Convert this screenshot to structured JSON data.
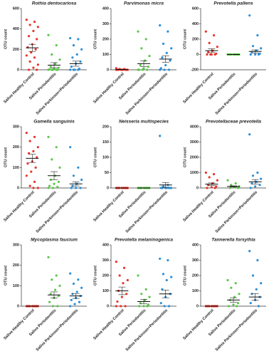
{
  "chart_data": [
    {
      "type": "dot",
      "title": "Rothia dentocariosa",
      "y_label": "OTU count",
      "categories": [
        "Saliva Healthy Control",
        "Saliva Periodontitis",
        "Saliva Parkinson+Periodontitis"
      ],
      "ylim": [
        0,
        600
      ],
      "yticks": [
        0,
        200,
        400,
        600
      ],
      "groups": [
        {
          "color": "#e8342b",
          "values": [
            490,
            470,
            440,
            420,
            380,
            330,
            300,
            250,
            220,
            200,
            170,
            140,
            120,
            80,
            50,
            20,
            0,
            0
          ],
          "mean": 215,
          "sem": 35
        },
        {
          "color": "#5cc64b",
          "values": [
            340,
            240,
            150,
            100,
            60,
            30,
            20,
            10,
            5,
            0,
            0,
            0,
            0,
            0
          ],
          "mean": 45,
          "sem": 25
        },
        {
          "color": "#2d8fd8",
          "values": [
            310,
            300,
            240,
            200,
            150,
            120,
            80,
            60,
            30,
            10,
            0,
            0,
            0,
            0
          ],
          "mean": 60,
          "sem": 25
        }
      ]
    },
    {
      "type": "dot",
      "title": "Parvimonas micra",
      "y_label": "OTU count",
      "categories": [
        "Saliva Healthy Control",
        "Saliva Periodontitis",
        "Saliva Parkinson+Periodontitis"
      ],
      "ylim": [
        0,
        400
      ],
      "yticks": [
        0,
        100,
        200,
        300,
        400
      ],
      "groups": [
        {
          "color": "#e8342b",
          "values": [
            10,
            5,
            5,
            0,
            0,
            0,
            0,
            0,
            0,
            0,
            0,
            0
          ],
          "mean": 2,
          "sem": 1
        },
        {
          "color": "#5cc64b",
          "values": [
            250,
            200,
            140,
            90,
            60,
            30,
            20,
            10,
            0,
            0,
            0,
            0
          ],
          "mean": 40,
          "sem": 18
        },
        {
          "color": "#2d8fd8",
          "values": [
            290,
            250,
            170,
            140,
            110,
            80,
            60,
            30,
            10,
            0,
            0,
            0
          ],
          "mean": 70,
          "sem": 22
        }
      ]
    },
    {
      "type": "dot",
      "title": "Prevotella pallens",
      "y_label": "OTU count",
      "categories": [
        "Saliva Healthy Control",
        "Saliva Periodontitis",
        "Saliva Parkinson+Periodontitis"
      ],
      "ylim": [
        -200,
        600
      ],
      "yticks": [
        -200,
        0,
        200,
        400,
        600
      ],
      "groups": [
        {
          "color": "#e8342b",
          "values": [
            300,
            250,
            150,
            100,
            50,
            30,
            10,
            0,
            0,
            0,
            0
          ],
          "mean": 50,
          "sem": 25
        },
        {
          "color": "#5cc64b",
          "values": [
            0,
            0,
            0,
            0,
            0,
            0,
            0,
            0,
            0,
            0
          ],
          "mean": 0,
          "sem": 0
        },
        {
          "color": "#2d8fd8",
          "values": [
            510,
            250,
            110,
            80,
            50,
            30,
            10,
            0,
            0,
            0
          ],
          "mean": 40,
          "sem": 20
        }
      ]
    },
    {
      "type": "dot",
      "title": "Gamella sanguinis",
      "y_label": "OTU count",
      "categories": [
        "Saliva Healthy Control",
        "Saliva Periodontitis",
        "Saliva Parkinson+Periodontitis"
      ],
      "ylim": [
        0,
        300
      ],
      "yticks": [
        0,
        100,
        200,
        300
      ],
      "groups": [
        {
          "color": "#e8342b",
          "values": [
            270,
            250,
            230,
            200,
            180,
            170,
            150,
            130,
            120,
            100,
            80,
            60,
            30,
            10,
            0,
            0
          ],
          "mean": 145,
          "sem": 20
        },
        {
          "color": "#5cc64b",
          "values": [
            250,
            200,
            140,
            100,
            60,
            40,
            30,
            20,
            10,
            5,
            0,
            0
          ],
          "mean": 60,
          "sem": 20
        },
        {
          "color": "#2d8fd8",
          "values": [
            200,
            100,
            60,
            40,
            20,
            10,
            0,
            0,
            0
          ],
          "mean": 20,
          "sem": 10
        }
      ]
    },
    {
      "type": "dot",
      "title": "Neisseria multispecies",
      "y_label": "OTU count",
      "categories": [
        "Saliva Healthy Control",
        "Saliva Periodontitis",
        "Saliva Parkinson+Periodontitis"
      ],
      "ylim": [
        0,
        200
      ],
      "yticks": [
        0,
        50,
        100,
        150,
        200
      ],
      "groups": [
        {
          "color": "#e8342b",
          "values": [
            0,
            0,
            0,
            0,
            0,
            0,
            0,
            0,
            0,
            0
          ],
          "mean": 0,
          "sem": 0
        },
        {
          "color": "#5cc64b",
          "values": [
            0,
            0,
            0,
            0,
            0,
            0,
            0,
            0,
            0,
            0
          ],
          "mean": 0,
          "sem": 0
        },
        {
          "color": "#2d8fd8",
          "values": [
            170,
            10,
            5,
            0,
            0,
            0,
            0,
            0,
            0,
            0
          ],
          "mean": 10,
          "sem": 8
        }
      ]
    },
    {
      "type": "dot",
      "title": "Prevotellaceae prevotella",
      "y_label": "OTU count",
      "categories": [
        "Saliva Healthy Control",
        "Saliva Periodontitis",
        "Saliva Parkinson+Periodontitis"
      ],
      "ylim": [
        0,
        4000
      ],
      "yticks": [
        0,
        1000,
        2000,
        3000,
        4000
      ],
      "groups": [
        {
          "color": "#e8342b",
          "values": [
            1000,
            900,
            700,
            500,
            300,
            200,
            100,
            50,
            0,
            0
          ],
          "mean": 250,
          "sem": 80
        },
        {
          "color": "#5cc64b",
          "values": [
            500,
            300,
            200,
            100,
            50,
            0,
            0
          ],
          "mean": 100,
          "sem": 40
        },
        {
          "color": "#2d8fd8",
          "values": [
            3500,
            1000,
            800,
            600,
            400,
            300,
            200,
            100,
            0
          ],
          "mean": 400,
          "sem": 150
        }
      ]
    },
    {
      "type": "dot",
      "title": "Mycoplasma faucium",
      "y_label": "OTU count",
      "categories": [
        "Saliva Healthy Control",
        "Saliva Periodontitis",
        "Saliva Parkinson+Periodontitis"
      ],
      "ylim": [
        0,
        300
      ],
      "yticks": [
        0,
        100,
        200,
        300
      ],
      "groups": [
        {
          "color": "#e8342b",
          "values": [
            0,
            0,
            0,
            0,
            0,
            0,
            0,
            0,
            0,
            0
          ],
          "mean": 0,
          "sem": 0
        },
        {
          "color": "#5cc64b",
          "values": [
            240,
            150,
            130,
            100,
            80,
            60,
            50,
            40,
            20,
            0,
            0
          ],
          "mean": 55,
          "sem": 15
        },
        {
          "color": "#2d8fd8",
          "values": [
            160,
            130,
            110,
            90,
            70,
            60,
            50,
            40,
            30,
            20,
            10,
            0
          ],
          "mean": 50,
          "sem": 12
        }
      ]
    },
    {
      "type": "dot",
      "title": "Prevotella melaninogenica",
      "y_label": "OTU count",
      "categories": [
        "Saliva Healthy Control",
        "Saliva Periodontitis",
        "Saliva Parkinson+Periodontitis"
      ],
      "ylim": [
        0,
        400
      ],
      "yticks": [
        0,
        100,
        200,
        300,
        400
      ],
      "groups": [
        {
          "color": "#e8342b",
          "values": [
            290,
            250,
            200,
            170,
            150,
            100,
            80,
            60,
            30,
            0,
            0,
            0
          ],
          "mean": 100,
          "sem": 25
        },
        {
          "color": "#5cc64b",
          "values": [
            200,
            110,
            80,
            60,
            40,
            20,
            10,
            0,
            0,
            0
          ],
          "mean": 30,
          "sem": 15
        },
        {
          "color": "#2d8fd8",
          "values": [
            310,
            300,
            210,
            190,
            170,
            110,
            80,
            60,
            20,
            0,
            0
          ],
          "mean": 80,
          "sem": 25
        }
      ]
    },
    {
      "type": "dot",
      "title": "Tannerella forsythia",
      "y_label": "OTU count",
      "categories": [
        "Saliva Healthy Control",
        "Saliva Periodontitis",
        "Saliva Parkinson+Periodontitis"
      ],
      "ylim": [
        0,
        400
      ],
      "yticks": [
        0,
        100,
        200,
        300,
        400
      ],
      "groups": [
        {
          "color": "#e8342b",
          "values": [
            0,
            0,
            0,
            0,
            0,
            0,
            0,
            0,
            0,
            0
          ],
          "mean": 0,
          "sem": 0
        },
        {
          "color": "#5cc64b",
          "values": [
            170,
            150,
            120,
            80,
            60,
            40,
            20,
            10,
            0,
            0
          ],
          "mean": 40,
          "sem": 15
        },
        {
          "color": "#2d8fd8",
          "values": [
            360,
            300,
            200,
            150,
            110,
            80,
            60,
            40,
            20,
            0
          ],
          "mean": 60,
          "sem": 22
        }
      ]
    }
  ]
}
